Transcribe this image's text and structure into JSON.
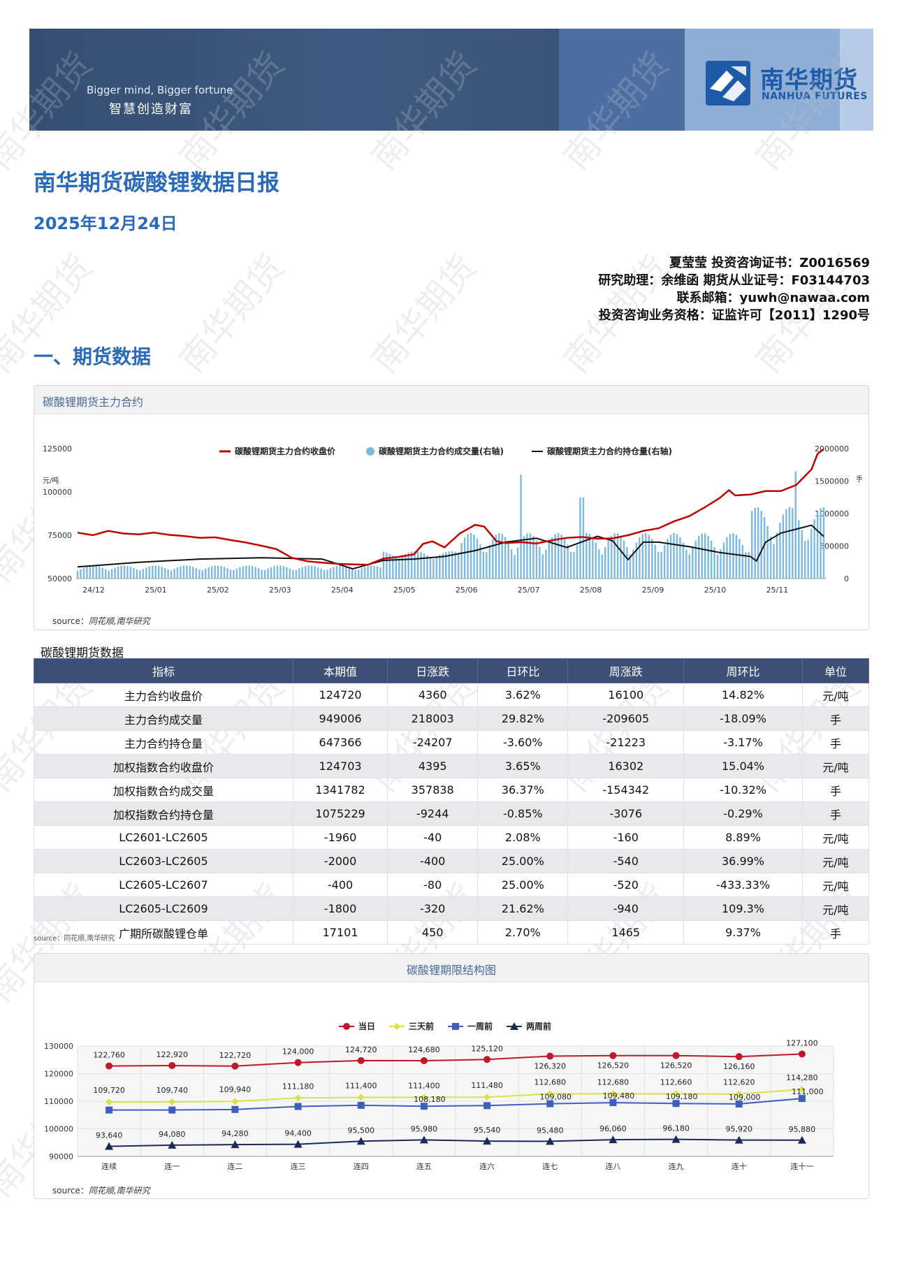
{
  "banner": {
    "slogan_en": "Bigger mind, Bigger fortune",
    "slogan_cn": "智慧创造财富",
    "logo_cn": "南华期货",
    "logo_en": "NANHUA FUTURES",
    "colors": {
      "banner": "#3a5276",
      "logo": "#1e5aa8"
    }
  },
  "watermark": "南华期货",
  "dot": "·",
  "report": {
    "title": "南华期货碳酸锂数据日报",
    "date": "2025年12月24日"
  },
  "authors": {
    "line1": "夏莹莹 投资咨询证书：Z0016569",
    "line2": "研究助理：余维函 期货从业证号：F03144703",
    "line3": "联系邮箱：yuwh@nawaa.com",
    "line4": "投资咨询业务资格：证监许可【2011】1290号"
  },
  "section1": "一、期货数据",
  "chart1": {
    "panel_title": "碳酸锂期货主力合约",
    "source_label": "source：",
    "source_text": "同花顺,南华研究",
    "left_unit": "元/吨",
    "right_unit": "手"
  },
  "table": {
    "title": "碳酸锂期货数据",
    "headers": [
      "指标",
      "本期值",
      "日涨跌",
      "日环比",
      "周涨跌",
      "周环比",
      "单位"
    ],
    "rows": [
      [
        "主力合约收盘价",
        "124720",
        "4360",
        "3.62%",
        "16100",
        "14.82%",
        "元/吨"
      ],
      [
        "主力合约成交量",
        "949006",
        "218003",
        "29.82%",
        "-209605",
        "-18.09%",
        "手"
      ],
      [
        "主力合约持仓量",
        "647366",
        "-24207",
        "-3.60%",
        "-21223",
        "-3.17%",
        "手"
      ],
      [
        "加权指数合约收盘价",
        "124703",
        "4395",
        "3.65%",
        "16302",
        "15.04%",
        "元/吨"
      ],
      [
        "加权指数合约成交量",
        "1341782",
        "357838",
        "36.37%",
        "-154342",
        "-10.32%",
        "手"
      ],
      [
        "加权指数合约持仓量",
        "1075229",
        "-9244",
        "-0.85%",
        "-3076",
        "-0.29%",
        "手"
      ],
      [
        "LC2601-LC2605",
        "-1960",
        "-40",
        "2.08%",
        "-160",
        "8.89%",
        "元/吨"
      ],
      [
        "LC2603-LC2605",
        "-2000",
        "-400",
        "25.00%",
        "-540",
        "36.99%",
        "元/吨"
      ],
      [
        "LC2605-LC2607",
        "-400",
        "-80",
        "25.00%",
        "-520",
        "-433.33%",
        "元/吨"
      ],
      [
        "LC2605-LC2609",
        "-1800",
        "-320",
        "21.62%",
        "-940",
        "109.3%",
        "元/吨"
      ],
      [
        "广期所碳酸锂仓单",
        "17101",
        "450",
        "2.70%",
        "1465",
        "9.37%",
        "手"
      ]
    ],
    "source": "source：同花顺,南华研究"
  },
  "chart2": {
    "panel_title": "碳酸锂期限结构图",
    "source_label": "source：",
    "source_text": "同花顺,南华研究"
  },
  "chart_data": [
    {
      "type": "bar+line",
      "title": "",
      "ylabel_left": "元/吨",
      "ylabel_right": "手",
      "ylim_left": [
        50000,
        125000
      ],
      "yticks_left": [
        50000,
        75000,
        100000,
        125000
      ],
      "ylim_right": [
        0,
        2000000
      ],
      "yticks_right": [
        0,
        500000,
        1000000,
        1500000,
        2000000
      ],
      "x_ticks": [
        "24/12",
        "25/01",
        "25/02",
        "25/03",
        "25/04",
        "25/05",
        "25/06",
        "25/07",
        "25/08",
        "25/09",
        "25/10",
        "25/11"
      ],
      "legend_position": "top",
      "series": [
        {
          "name": "碳酸锂期货主力合约收盘价",
          "kind": "line",
          "axis": "left",
          "color": "#c00000",
          "points": [
            [
              0,
              76500
            ],
            [
              0.5,
              75000
            ],
            [
              1,
              77500
            ],
            [
              1.5,
              76000
            ],
            [
              2,
              75500
            ],
            [
              2.5,
              76500
            ],
            [
              3,
              75200
            ],
            [
              3.5,
              74500
            ],
            [
              4,
              73500
            ],
            [
              4.5,
              73800
            ],
            [
              5,
              72200
            ],
            [
              5.5,
              70800
            ],
            [
              6,
              69000
            ],
            [
              6.5,
              67000
            ],
            [
              7,
              62000
            ],
            [
              7.5,
              60000
            ],
            [
              8,
              59200
            ],
            [
              8.5,
              58500
            ],
            [
              9,
              58200
            ],
            [
              9.5,
              58000
            ],
            [
              10,
              61500
            ],
            [
              10.5,
              62500
            ],
            [
              11,
              64000
            ],
            [
              11.3,
              70000
            ],
            [
              11.6,
              71500
            ],
            [
              12,
              68000
            ],
            [
              12.5,
              76000
            ],
            [
              13,
              81000
            ],
            [
              13.3,
              80000
            ],
            [
              13.7,
              71500
            ],
            [
              14,
              70500
            ],
            [
              14.5,
              71000
            ],
            [
              15,
              70200
            ],
            [
              15.5,
              72000
            ],
            [
              16,
              73500
            ],
            [
              16.5,
              74000
            ],
            [
              17,
              73000
            ],
            [
              17.5,
              73200
            ],
            [
              18,
              75000
            ],
            [
              18.5,
              77500
            ],
            [
              19,
              79000
            ],
            [
              19.5,
              83000
            ],
            [
              20,
              86000
            ],
            [
              20.5,
              91000
            ],
            [
              21,
              96500
            ],
            [
              21.3,
              101000
            ],
            [
              21.5,
              98000
            ],
            [
              22,
              98500
            ],
            [
              22.5,
              100500
            ],
            [
              23,
              100500
            ],
            [
              23.5,
              104000
            ],
            [
              24,
              113000
            ],
            [
              24.2,
              122000
            ],
            [
              24.4,
              124720
            ]
          ]
        },
        {
          "name": "碳酸锂期货主力合约成交量(右轴)",
          "kind": "bar",
          "axis": "right",
          "color": "#7cb9df",
          "peaks": [
            {
              "x": 14.5,
              "v": 1600000
            },
            {
              "x": 16.5,
              "v": 1250000
            },
            {
              "x": 23.5,
              "v": 1650000
            },
            {
              "x": 24.4,
              "v": 949006
            }
          ]
        },
        {
          "name": "碳酸锂期货主力合约持仓量(右轴)",
          "kind": "line",
          "axis": "right",
          "color": "#111111",
          "points": [
            [
              0,
              180000
            ],
            [
              2,
              250000
            ],
            [
              4,
              300000
            ],
            [
              6,
              320000
            ],
            [
              8,
              300000
            ],
            [
              9,
              150000
            ],
            [
              10,
              280000
            ],
            [
              11,
              300000
            ],
            [
              12,
              340000
            ],
            [
              13,
              430000
            ],
            [
              14,
              560000
            ],
            [
              15,
              620000
            ],
            [
              16,
              480000
            ],
            [
              16.7,
              600000
            ],
            [
              17,
              650000
            ],
            [
              17.5,
              580000
            ],
            [
              18,
              290000
            ],
            [
              18.5,
              560000
            ],
            [
              19,
              560000
            ],
            [
              20,
              490000
            ],
            [
              21,
              400000
            ],
            [
              22,
              340000
            ],
            [
              22.2,
              270000
            ],
            [
              22.5,
              560000
            ],
            [
              23,
              700000
            ],
            [
              24,
              820000
            ],
            [
              24.4,
              647366
            ]
          ]
        }
      ]
    },
    {
      "type": "line",
      "title": "",
      "ylim": [
        90000,
        130000
      ],
      "yticks": [
        90000,
        100000,
        110000,
        120000,
        130000
      ],
      "categories": [
        "连续",
        "连一",
        "连二",
        "连三",
        "连四",
        "连五",
        "连六",
        "连七",
        "连八",
        "连九",
        "连十",
        "连十一"
      ],
      "legend_position": "top",
      "series": [
        {
          "name": "当日",
          "color": "#c0182b",
          "marker": "circle",
          "values": [
            122760,
            122920,
            122720,
            124000,
            124720,
            124680,
            125120,
            126320,
            126520,
            126520,
            126160,
            127100
          ]
        },
        {
          "name": "三天前",
          "color": "#d7e24a",
          "marker": "diamond",
          "values": [
            109720,
            109740,
            109940,
            111180,
            111400,
            111400,
            111480,
            112680,
            112680,
            112660,
            112620,
            114280
          ]
        },
        {
          "name": "一周前",
          "color": "#3f5fbf",
          "marker": "square",
          "values": [
            106800,
            106800,
            107000,
            108100,
            108500,
            108180,
            108400,
            109080,
            109480,
            109180,
            109000,
            111000
          ]
        },
        {
          "name": "两周前",
          "color": "#1c2a5a",
          "marker": "triangle",
          "values": [
            93640,
            94080,
            94280,
            94400,
            95500,
            95980,
            95540,
            95480,
            96060,
            96180,
            95920,
            95880
          ]
        }
      ],
      "data_labels": {
        "当日": [
          "122,760",
          "122,920",
          "122,720",
          "124,000",
          "124,720",
          "124,680",
          "125,120",
          "126,320",
          "126,520",
          "126,520",
          "126,160",
          "127,100"
        ],
        "三天前": [
          "109,720",
          "109,740",
          "109,940",
          "111,180",
          "111,400",
          "111,400",
          "111,480",
          "112,680",
          "112,680",
          "112,660",
          "112,620",
          "114,280"
        ],
        "一周前": [
          "",
          "",
          "",
          "",
          "",
          "108,180",
          "",
          "109,080",
          "109,480",
          "109,180",
          "109,000",
          "111,000"
        ],
        "两周前": [
          "93,640",
          "94,080",
          "94,280",
          "94,400",
          "95,500",
          "95,980",
          "95,540",
          "95,480",
          "96,060",
          "96,180",
          "95,920",
          "95,880"
        ]
      }
    }
  ]
}
